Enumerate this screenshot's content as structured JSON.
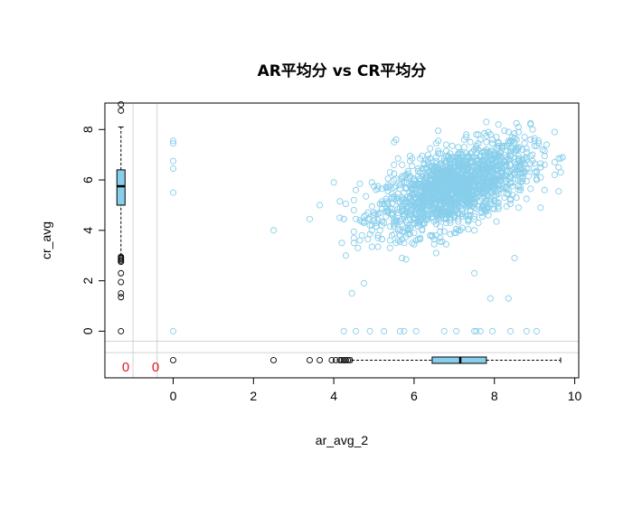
{
  "chart_data": {
    "type": "scatter",
    "title": "AR平均分 vs CR平均分",
    "xlabel": "ar_avg_2",
    "ylabel": "cr_avg",
    "xlim": [
      -1.7,
      10.1
    ],
    "ylim": [
      -1.85,
      9.05
    ],
    "x_ticks": [
      0,
      2,
      4,
      6,
      8,
      10
    ],
    "y_ticks": [
      0,
      2,
      4,
      6,
      8
    ],
    "grid": false,
    "point_color": "#87ceeb",
    "box_color": "#87ceeb",
    "na_color": "#e8141c",
    "na_counts": {
      "x_missing": "0",
      "y_missing": "0"
    },
    "cluster": {
      "n": 1700,
      "x_mean": 7.0,
      "x_sd": 0.95,
      "y_mean": 5.7,
      "y_sd": 0.9,
      "correlation": 0.55,
      "x_range": [
        4.1,
        9.7
      ],
      "y_range": [
        2.7,
        9.0
      ]
    },
    "outlier_points": [
      [
        0,
        7.55
      ],
      [
        0,
        7.45
      ],
      [
        0,
        6.75
      ],
      [
        0,
        6.45
      ],
      [
        0,
        5.5
      ],
      [
        0,
        0
      ],
      [
        2.5,
        4.0
      ],
      [
        3.4,
        4.45
      ],
      [
        3.65,
        5.0
      ],
      [
        4.0,
        5.9
      ],
      [
        4.2,
        3.5
      ],
      [
        4.45,
        1.5
      ],
      [
        4.75,
        1.9
      ],
      [
        4.95,
        5.9
      ],
      [
        5.55,
        7.6
      ],
      [
        5.5,
        7.5
      ],
      [
        7.5,
        2.3
      ],
      [
        7.9,
        1.3
      ],
      [
        8.35,
        1.3
      ],
      [
        8.5,
        2.9
      ],
      [
        4.25,
        0
      ],
      [
        4.55,
        0
      ],
      [
        4.9,
        0
      ],
      [
        5.25,
        0
      ],
      [
        5.65,
        0
      ],
      [
        5.75,
        0
      ],
      [
        6.05,
        0
      ],
      [
        6.75,
        0
      ],
      [
        7.05,
        0
      ],
      [
        7.5,
        0
      ],
      [
        7.55,
        0
      ],
      [
        7.65,
        0
      ],
      [
        7.95,
        0
      ],
      [
        8.4,
        0
      ],
      [
        8.8,
        0
      ],
      [
        9.05,
        0
      ]
    ],
    "x_boxplot": {
      "q1": 6.45,
      "median": 7.15,
      "q3": 7.8,
      "whisker_low": 4.45,
      "whisker_high": 9.65,
      "outliers": [
        0,
        2.5,
        3.4,
        3.65,
        3.95,
        4.05,
        4.15,
        4.2,
        4.25,
        4.3,
        4.35,
        4.4
      ]
    },
    "y_boxplot": {
      "q1": 5.0,
      "median": 5.75,
      "q3": 6.4,
      "whisker_low": 3.0,
      "whisker_high": 8.1,
      "outliers": [
        8.75,
        9.0,
        2.95,
        2.9,
        2.85,
        2.8,
        2.75,
        2.3,
        1.95,
        1.5,
        1.35,
        0
      ]
    }
  }
}
